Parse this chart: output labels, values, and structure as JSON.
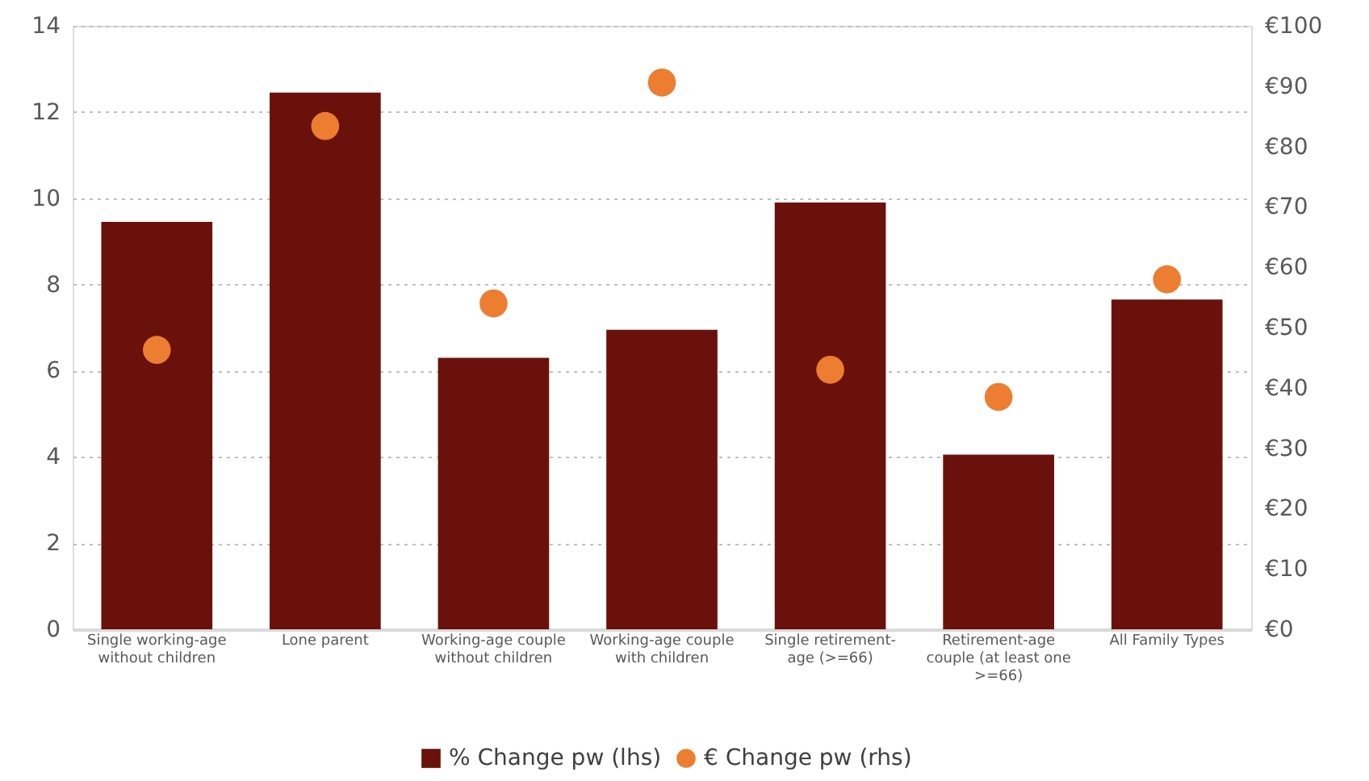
{
  "chart_data": {
    "type": "bar",
    "categories": [
      "Single working-age without children",
      "Lone parent",
      "Working-age couple without children",
      "Working-age couple with children",
      "Single retirement-age (>=66)",
      "Retirement-age couple (at least one >=66)",
      "All Family Types"
    ],
    "series": [
      {
        "name": "% Change pw (lhs)",
        "color": "#6b110b",
        "values": [
          9.45,
          12.45,
          6.3,
          6.95,
          9.9,
          4.05,
          7.65
        ]
      },
      {
        "name": "€ Change pw (rhs)",
        "color": "#ed7d31",
        "type": "scatter",
        "axis": "y2",
        "marker": "circle",
        "values": [
          46.3,
          83.4,
          54,
          90.6,
          43,
          38.5,
          58
        ]
      }
    ],
    "ylim": [
      0,
      14
    ],
    "yticks": [
      0,
      2,
      4,
      6,
      8,
      10,
      12,
      14
    ],
    "y2lim": [
      0,
      100
    ],
    "y2ticks": [
      {
        "value": 0,
        "label": "€0"
      },
      {
        "value": 10,
        "label": "€10"
      },
      {
        "value": 20,
        "label": "€20"
      },
      {
        "value": 30,
        "label": "€30"
      },
      {
        "value": 40,
        "label": "€40"
      },
      {
        "value": 50,
        "label": "€50"
      },
      {
        "value": 60,
        "label": "€60"
      },
      {
        "value": 70,
        "label": "€70"
      },
      {
        "value": 80,
        "label": "€80"
      },
      {
        "value": 90,
        "label": "€90"
      },
      {
        "value": 100,
        "label": "€100"
      }
    ],
    "grid": "y",
    "legend": "bottom"
  }
}
